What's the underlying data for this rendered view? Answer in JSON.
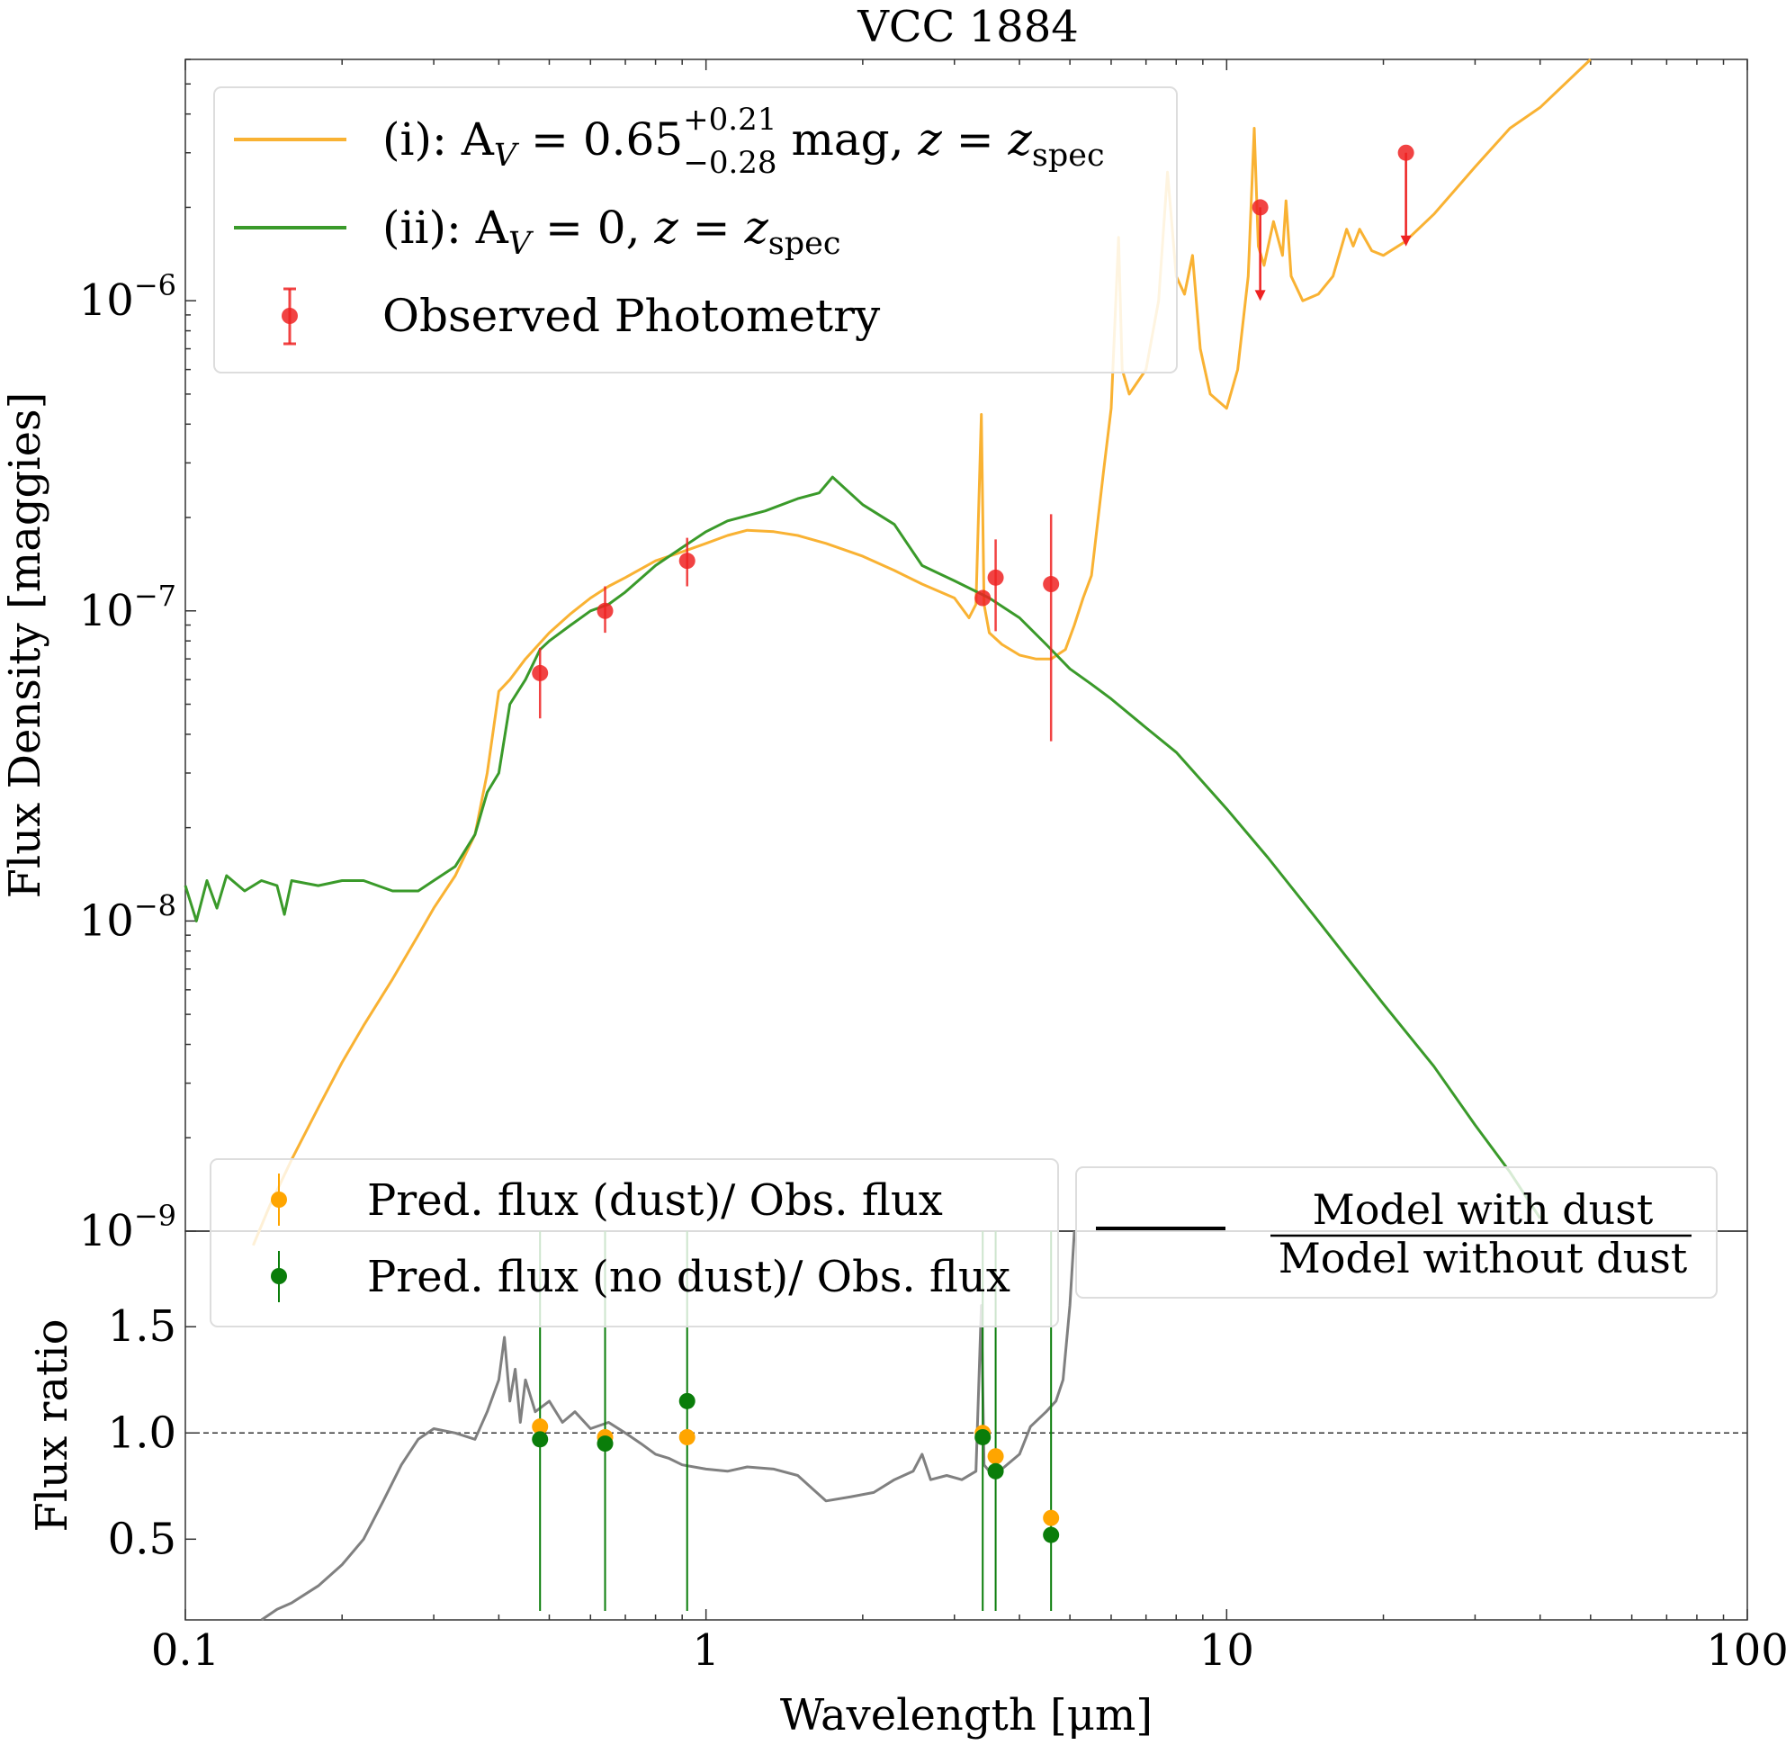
{
  "chart_data": [
    {
      "type": "line",
      "title": "VCC 1884",
      "xlabel": "",
      "ylabel": "Flux Density [maggies]",
      "xscale": "log",
      "yscale": "log",
      "xlim": [
        0.1,
        100
      ],
      "ylim": [
        1e-09,
        6e-06
      ],
      "grid": false,
      "legend_position": "top-left",
      "ytick_labels": [
        {
          "value": 1e-06,
          "base": "10",
          "exp": "−6"
        },
        {
          "value": 1e-07,
          "base": "10",
          "exp": "−7"
        },
        {
          "value": 1e-08,
          "base": "10",
          "exp": "−8"
        },
        {
          "value": 1e-09,
          "base": "10",
          "exp": "−9"
        }
      ],
      "legend": [
        {
          "label_parts": [
            "(i): A",
            "V",
            " = 0.65",
            "+0.21",
            "−0.28",
            " mag, ",
            "z",
            " = ",
            "z",
            "spec"
          ],
          "color": "#f9b233"
        },
        {
          "label_parts": [
            "(ii): A",
            "V",
            " = 0, ",
            "z",
            " = ",
            "z",
            "spec"
          ],
          "color": "#3a9a2a"
        },
        {
          "label": "Observed Photometry",
          "color": "#ee2222"
        }
      ],
      "series": [
        {
          "color": "#f9b233",
          "x": [
            0.135,
            0.145,
            0.16,
            0.18,
            0.2,
            0.22,
            0.25,
            0.28,
            0.3,
            0.33,
            0.36,
            0.38,
            0.4,
            0.42,
            0.45,
            0.5,
            0.55,
            0.6,
            0.65,
            0.7,
            0.8,
            0.9,
            1.0,
            1.1,
            1.2,
            1.35,
            1.5,
            1.7,
            2.0,
            2.3,
            2.6,
            3.0,
            3.2,
            3.3,
            3.38,
            3.42,
            3.5,
            3.7,
            4.0,
            4.3,
            4.6,
            4.9,
            5.1,
            5.3,
            5.5,
            5.8,
            6.0,
            6.2,
            6.3,
            6.5,
            7.0,
            7.4,
            7.7,
            8.0,
            8.3,
            8.6,
            8.9,
            9.3,
            10.0,
            10.5,
            11.0,
            11.3,
            11.5,
            11.8,
            12.3,
            12.8,
            13.0,
            13.3,
            14.0,
            15.0,
            16.0,
            17.0,
            17.5,
            18.0,
            19.0,
            20.0,
            22.0,
            25.0,
            30.0,
            35.0,
            40.0,
            50.0
          ],
          "y": [
            9e-10,
            1.2e-09,
            1.7e-09,
            2.5e-09,
            3.5e-09,
            4.6e-09,
            6.5e-09,
            9e-09,
            1.1e-08,
            1.4e-08,
            1.9e-08,
            3e-08,
            5.5e-08,
            6e-08,
            7e-08,
            8.5e-08,
            9.8e-08,
            1.1e-07,
            1.2e-07,
            1.28e-07,
            1.45e-07,
            1.55e-07,
            1.65e-07,
            1.75e-07,
            1.82e-07,
            1.8e-07,
            1.75e-07,
            1.65e-07,
            1.5e-07,
            1.35e-07,
            1.22e-07,
            1.1e-07,
            9.5e-08,
            1.05e-07,
            4.3e-07,
            1.05e-07,
            8.5e-08,
            7.8e-08,
            7.2e-08,
            7e-08,
            7e-08,
            7.5e-08,
            9e-08,
            1.1e-07,
            1.3e-07,
            2.8e-07,
            4.5e-07,
            1.6e-06,
            6e-07,
            5e-07,
            6e-07,
            1e-06,
            2.6e-06,
            1.2e-06,
            1.05e-06,
            1.4e-06,
            7e-07,
            5e-07,
            4.5e-07,
            6e-07,
            1.2e-06,
            3.6e-06,
            1.5e-06,
            1.3e-06,
            1.8e-06,
            1.4e-06,
            2.1e-06,
            1.2e-06,
            1e-06,
            1.05e-06,
            1.2e-06,
            1.7e-06,
            1.5e-06,
            1.7e-06,
            1.45e-06,
            1.4e-06,
            1.55e-06,
            1.9e-06,
            2.7e-06,
            3.6e-06,
            4.2e-06,
            6e-06
          ]
        },
        {
          "color": "#3a9a2a",
          "x": [
            0.1,
            0.105,
            0.11,
            0.115,
            0.12,
            0.13,
            0.14,
            0.15,
            0.155,
            0.16,
            0.18,
            0.2,
            0.22,
            0.25,
            0.28,
            0.3,
            0.33,
            0.36,
            0.38,
            0.4,
            0.42,
            0.45,
            0.48,
            0.5,
            0.55,
            0.6,
            0.65,
            0.7,
            0.8,
            0.9,
            1.0,
            1.1,
            1.3,
            1.5,
            1.65,
            1.75,
            2.0,
            2.3,
            2.6,
            3.0,
            3.5,
            4.0,
            4.5,
            5.0,
            5.5,
            6.0,
            7.0,
            8.0,
            10.0,
            12.0,
            15.0,
            20.0,
            25.0,
            30.0,
            35.0,
            40.0
          ],
          "y": [
            1.3e-08,
            1e-08,
            1.35e-08,
            1.1e-08,
            1.4e-08,
            1.25e-08,
            1.35e-08,
            1.3e-08,
            1.05e-08,
            1.35e-08,
            1.3e-08,
            1.35e-08,
            1.35e-08,
            1.25e-08,
            1.25e-08,
            1.35e-08,
            1.5e-08,
            1.9e-08,
            2.6e-08,
            3e-08,
            5e-08,
            6e-08,
            7.5e-08,
            8e-08,
            9e-08,
            1e-07,
            1.05e-07,
            1.15e-07,
            1.4e-07,
            1.6e-07,
            1.8e-07,
            1.95e-07,
            2.1e-07,
            2.3e-07,
            2.4e-07,
            2.7e-07,
            2.2e-07,
            1.9e-07,
            1.4e-07,
            1.25e-07,
            1.1e-07,
            9.5e-08,
            7.8e-08,
            6.5e-08,
            5.8e-08,
            5.2e-08,
            4.2e-08,
            3.5e-08,
            2.3e-08,
            1.6e-08,
            1e-08,
            5.4e-09,
            3.4e-09,
            2.2e-09,
            1.55e-09,
            1.1e-09
          ]
        }
      ],
      "photometry": {
        "color": "#ee2222",
        "points": [
          {
            "x": 0.48,
            "y": 6.3e-08,
            "ylo": 4.5e-08,
            "yhi": 7.6e-08
          },
          {
            "x": 0.64,
            "y": 1e-07,
            "ylo": 8.5e-08,
            "yhi": 1.2e-07
          },
          {
            "x": 0.92,
            "y": 1.45e-07,
            "ylo": 1.2e-07,
            "yhi": 1.72e-07
          },
          {
            "x": 3.4,
            "y": 1.1e-07,
            "ylo": 1.1e-07,
            "yhi": 1.1e-07
          },
          {
            "x": 3.6,
            "y": 1.28e-07,
            "ylo": 8.6e-08,
            "yhi": 1.7e-07
          },
          {
            "x": 4.6,
            "y": 1.22e-07,
            "ylo": 3.8e-08,
            "yhi": 2.05e-07
          }
        ],
        "upper_limits": [
          {
            "x": 11.6,
            "y": 2e-06
          },
          {
            "x": 22.1,
            "y": 3e-06
          }
        ]
      }
    },
    {
      "type": "line",
      "title": "",
      "xlabel": "Wavelength [μm]",
      "ylabel": "Flux ratio",
      "xscale": "log",
      "xlim": [
        0.1,
        100
      ],
      "ylim": [
        0.12,
        1.95
      ],
      "xticks": [
        0.1,
        1,
        10,
        100
      ],
      "xtick_labels": [
        "0.1",
        "1",
        "10",
        "100"
      ],
      "yticks": [
        0.5,
        1.0,
        1.5
      ],
      "ytick_labels": [
        "0.5",
        "1.0",
        "1.5"
      ],
      "reference_line": 1.0,
      "legend_left": [
        {
          "label": "Pred. flux (dust)/ Obs. flux",
          "color": "#ffa500"
        },
        {
          "label": "Pred. flux (no dust)/ Obs. flux",
          "color": "#0a7d0a"
        }
      ],
      "legend_right": {
        "numerator": "Model with dust",
        "denominator": "Model without dust",
        "color": "#000000"
      },
      "series": [
        {
          "color": "#808080",
          "x": [
            0.14,
            0.15,
            0.16,
            0.18,
            0.2,
            0.22,
            0.24,
            0.26,
            0.28,
            0.3,
            0.33,
            0.36,
            0.38,
            0.4,
            0.41,
            0.42,
            0.43,
            0.44,
            0.45,
            0.47,
            0.5,
            0.53,
            0.56,
            0.6,
            0.65,
            0.7,
            0.75,
            0.8,
            0.85,
            0.9,
            1.0,
            1.1,
            1.2,
            1.35,
            1.5,
            1.7,
            1.9,
            2.1,
            2.3,
            2.5,
            2.6,
            2.7,
            2.9,
            3.1,
            3.3,
            3.38,
            3.42,
            3.5,
            3.7,
            4.0,
            4.2,
            4.5,
            4.7,
            4.85,
            5.0,
            5.1
          ],
          "y": [
            0.12,
            0.17,
            0.2,
            0.28,
            0.38,
            0.5,
            0.68,
            0.85,
            0.97,
            1.02,
            1.0,
            0.97,
            1.1,
            1.25,
            1.45,
            1.15,
            1.3,
            1.05,
            1.25,
            1.1,
            1.15,
            1.05,
            1.1,
            1.02,
            1.05,
            1.0,
            0.95,
            0.9,
            0.88,
            0.85,
            0.83,
            0.82,
            0.84,
            0.83,
            0.8,
            0.68,
            0.7,
            0.72,
            0.78,
            0.82,
            0.9,
            0.78,
            0.8,
            0.78,
            0.82,
            1.6,
            0.85,
            0.82,
            0.83,
            0.9,
            1.03,
            1.1,
            1.15,
            1.25,
            1.6,
            1.95
          ]
        }
      ],
      "ratio_points_dust": {
        "color": "#ffa500",
        "points": [
          {
            "x": 0.48,
            "y": 1.03
          },
          {
            "x": 0.64,
            "y": 0.98
          },
          {
            "x": 0.92,
            "y": 0.98
          },
          {
            "x": 3.4,
            "y": 1.0
          },
          {
            "x": 3.6,
            "y": 0.89
          },
          {
            "x": 4.6,
            "y": 0.6
          }
        ]
      },
      "ratio_points_nodust": {
        "color": "#0a7d0a",
        "points": [
          {
            "x": 0.48,
            "y": 0.97
          },
          {
            "x": 0.64,
            "y": 0.95
          },
          {
            "x": 0.92,
            "y": 1.15
          },
          {
            "x": 3.4,
            "y": 0.98
          },
          {
            "x": 3.6,
            "y": 0.82
          },
          {
            "x": 4.6,
            "y": 0.52
          }
        ]
      }
    }
  ]
}
